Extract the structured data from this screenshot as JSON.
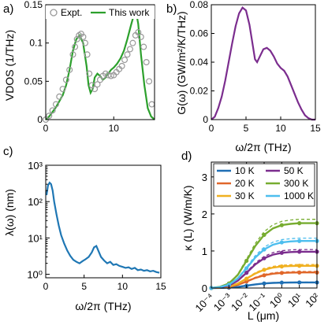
{
  "chart_data": [
    {
      "panel_label": "a)",
      "type": "scatter",
      "xlabel": "",
      "ylabel": "VDOS (1/THz)",
      "xlim": [
        0,
        16
      ],
      "ylim": [
        0,
        0.15
      ],
      "xticks": [
        "0",
        "10"
      ],
      "yticks": [
        "0",
        "0.05",
        "0.1",
        "0.15"
      ],
      "legend": [
        "Expt.",
        "This work"
      ],
      "legend_position": "top",
      "series": [
        {
          "name": "Expt.",
          "style": "markers",
          "color": "#999999",
          "x": [
            0.0,
            0.5,
            1.0,
            1.5,
            2.0,
            2.5,
            3.0,
            3.5,
            4.0,
            4.3,
            4.6,
            4.9,
            5.2,
            5.5,
            5.8,
            6.1,
            6.4,
            6.8,
            7.2,
            7.6,
            8.0,
            8.4,
            8.8,
            9.2,
            9.6,
            10.0,
            10.4,
            10.8,
            11.2,
            11.6,
            12.0,
            12.4,
            12.8,
            13.2,
            13.6,
            14.0,
            14.4,
            14.8,
            15.2,
            15.6
          ],
          "y": [
            0.0,
            0.005,
            0.012,
            0.02,
            0.03,
            0.04,
            0.052,
            0.065,
            0.085,
            0.095,
            0.105,
            0.11,
            0.112,
            0.108,
            0.1,
            0.085,
            0.06,
            0.045,
            0.04,
            0.046,
            0.052,
            0.057,
            0.06,
            0.058,
            0.057,
            0.058,
            0.062,
            0.066,
            0.07,
            0.078,
            0.085,
            0.092,
            0.1,
            0.11,
            0.114,
            0.108,
            0.095,
            0.075,
            0.05,
            0.02
          ]
        },
        {
          "name": "This work",
          "style": "line",
          "color": "#2ca02c",
          "x": [
            0.0,
            0.5,
            1.0,
            1.5,
            2.0,
            2.5,
            3.0,
            3.5,
            4.0,
            4.5,
            5.0,
            5.5,
            6.0,
            6.3,
            6.6,
            6.9,
            7.2,
            7.6,
            8.0,
            8.4,
            8.8,
            9.2,
            9.6,
            10.0,
            10.5,
            11.0,
            11.5,
            12.0,
            12.5,
            13.0,
            13.3,
            13.6,
            14.0,
            14.5,
            15.0,
            15.5,
            16.0
          ],
          "y": [
            0.0,
            0.004,
            0.01,
            0.016,
            0.024,
            0.032,
            0.045,
            0.065,
            0.09,
            0.105,
            0.11,
            0.1,
            0.07,
            0.045,
            0.035,
            0.04,
            0.055,
            0.06,
            0.057,
            0.052,
            0.055,
            0.06,
            0.065,
            0.068,
            0.073,
            0.08,
            0.09,
            0.105,
            0.122,
            0.138,
            0.14,
            0.125,
            0.085,
            0.045,
            0.015,
            0.004,
            0.0
          ]
        }
      ]
    },
    {
      "panel_label": "b)",
      "type": "line",
      "xlabel": "ω/2π (THz)",
      "ylabel": "G(ω) (GW/m²/K/THz)",
      "xlim": [
        0,
        15
      ],
      "ylim": [
        0,
        0.08
      ],
      "xticks": [
        "0",
        "5",
        "10",
        "15"
      ],
      "yticks": [
        "0",
        "0.02",
        "0.04",
        "0.06",
        "0.08"
      ],
      "series": [
        {
          "color": "#7b2d8e",
          "x": [
            0.0,
            0.5,
            1.0,
            1.5,
            2.0,
            2.5,
            3.0,
            3.5,
            4.0,
            4.5,
            5.0,
            5.5,
            6.0,
            6.3,
            6.6,
            7.0,
            7.5,
            8.0,
            8.5,
            9.0,
            9.5,
            10.0,
            10.5,
            11.0,
            11.5,
            12.0,
            12.5,
            13.0,
            13.5,
            14.0,
            14.5,
            15.0
          ],
          "y": [
            0.0,
            0.002,
            0.008,
            0.016,
            0.027,
            0.04,
            0.053,
            0.065,
            0.074,
            0.078,
            0.076,
            0.066,
            0.051,
            0.042,
            0.04,
            0.044,
            0.049,
            0.05,
            0.048,
            0.044,
            0.039,
            0.036,
            0.034,
            0.03,
            0.024,
            0.018,
            0.012,
            0.007,
            0.003,
            0.001,
            0.0,
            0.0
          ]
        }
      ]
    },
    {
      "panel_label": "c)",
      "type": "line",
      "xlabel": "ω/2π (THz)",
      "ylabel": "λ(ω) (nm)",
      "xlim": [
        0,
        15
      ],
      "ylim": [
        0.8,
        1000
      ],
      "yscale": "log",
      "xticks": [
        "0",
        "5",
        "10",
        "15"
      ],
      "yticks": [
        "10⁰",
        "10¹",
        "10²",
        "10³"
      ],
      "series": [
        {
          "color": "#1f77b4",
          "x": [
            0.1,
            0.3,
            0.5,
            0.7,
            0.9,
            1.1,
            1.4,
            1.7,
            2.0,
            2.4,
            2.8,
            3.2,
            3.6,
            4.0,
            4.4,
            4.8,
            5.2,
            5.6,
            6.0,
            6.3,
            6.6,
            6.9,
            7.2,
            7.6,
            8.0,
            8.4,
            8.8,
            9.2,
            9.6,
            10.0,
            10.4,
            10.8,
            11.2,
            11.6,
            12.0,
            12.4,
            12.8,
            13.2,
            13.6,
            14.0,
            14.4,
            14.8
          ],
          "y": [
            150,
            280,
            330,
            300,
            200,
            100,
            45,
            22,
            12,
            7,
            4.5,
            3.2,
            2.5,
            2.2,
            2.0,
            2.3,
            2.6,
            3.0,
            4.0,
            5.5,
            6.0,
            4.2,
            3.0,
            2.4,
            2.0,
            2.2,
            1.8,
            1.9,
            1.7,
            1.6,
            1.5,
            1.55,
            1.4,
            1.5,
            1.3,
            1.35,
            1.25,
            1.3,
            1.2,
            1.25,
            1.15,
            1.1
          ]
        }
      ]
    },
    {
      "panel_label": "d)",
      "type": "line",
      "xlabel": "L (μm)",
      "ylabel": "κ (L) (W/m/K)",
      "xscale": "log",
      "xlim": [
        0.0001,
        100
      ],
      "ylim": [
        0,
        3.4
      ],
      "xticks": [
        "10⁻⁴",
        "10⁻³",
        "10⁻²",
        "10⁻¹",
        "10⁰",
        "10¹",
        "10²"
      ],
      "yticks": [
        "0",
        "1",
        "2",
        "3"
      ],
      "legend_position": "top-right",
      "legend_columns": 2,
      "series": [
        {
          "name": "10 K",
          "color": "#1f6fb4",
          "sat": 0.15
        },
        {
          "name": "20 K",
          "color": "#e0672a",
          "sat": 0.42
        },
        {
          "name": "30 K",
          "color": "#f0b020",
          "sat": 0.6
        },
        {
          "name": "50 K",
          "color": "#7b2d8e",
          "sat": 0.98
        },
        {
          "name": "300 K",
          "color": "#77ac30",
          "sat": 1.75
        },
        {
          "name": "1000 K",
          "color": "#4dbeee",
          "sat": 1.27
        }
      ],
      "curve_logL": [
        -4.0,
        -3.5,
        -3.0,
        -2.5,
        -2.0,
        -1.5,
        -1.0,
        -0.5,
        0.0,
        0.5,
        1.0,
        1.5,
        2.0
      ],
      "curve_fraction": [
        0.0,
        0.02,
        0.07,
        0.2,
        0.42,
        0.65,
        0.82,
        0.92,
        0.97,
        0.99,
        1.0,
        1.0,
        1.0
      ]
    }
  ]
}
